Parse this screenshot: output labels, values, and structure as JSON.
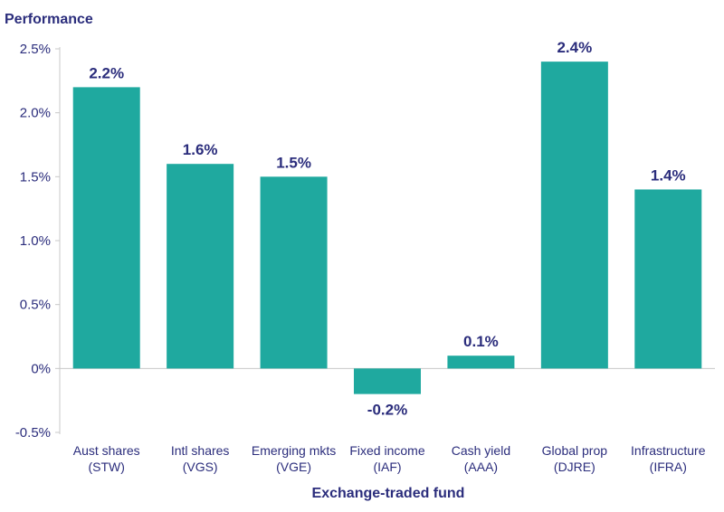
{
  "chart_data": {
    "type": "bar",
    "ylabel": "Performance",
    "xlabel": "Exchange-traded fund",
    "ylim": [
      -0.5,
      2.5
    ],
    "yticks": [
      {
        "value": 2.5,
        "label": "2.5%"
      },
      {
        "value": 2.0,
        "label": "2.0%"
      },
      {
        "value": 1.5,
        "label": "1.5%"
      },
      {
        "value": 1.0,
        "label": "1.0%"
      },
      {
        "value": 0.5,
        "label": "0.5%"
      },
      {
        "value": 0,
        "label": "0%"
      },
      {
        "value": -0.5,
        "label": "-0.5%"
      }
    ],
    "categories": [
      {
        "name": "Aust shares",
        "code": "(STW)"
      },
      {
        "name": "Intl shares",
        "code": "(VGS)"
      },
      {
        "name": "Emerging mkts",
        "code": "(VGE)"
      },
      {
        "name": "Fixed income",
        "code": "(IAF)"
      },
      {
        "name": "Cash yield",
        "code": "(AAA)"
      },
      {
        "name": "Global prop",
        "code": "(DJRE)"
      },
      {
        "name": "Infrastructure",
        "code": "(IFRA)"
      }
    ],
    "values": [
      2.2,
      1.6,
      1.5,
      -0.2,
      0.1,
      2.4,
      1.4
    ],
    "value_labels": [
      "2.2%",
      "1.6%",
      "1.5%",
      "-0.2%",
      "0.1%",
      "2.4%",
      "1.4%"
    ],
    "colors": {
      "bar": "#1fa99f",
      "text": "#2b2d7c",
      "axis": "#c8c8c8"
    }
  }
}
